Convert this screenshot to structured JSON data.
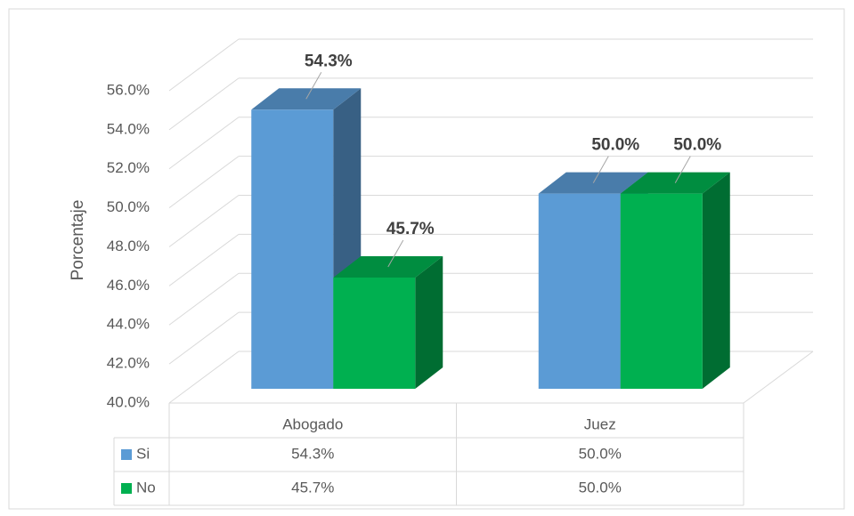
{
  "chart_data": {
    "type": "bar3d",
    "y_axis_label": "Porcentaje",
    "categories": [
      "Abogado",
      "Juez"
    ],
    "series": [
      {
        "name": "Si",
        "color": "#5b9bd5",
        "values": [
          54.3,
          50.0
        ],
        "value_labels": [
          "54.3%",
          "50.0%"
        ]
      },
      {
        "name": "No",
        "color": "#00b050",
        "values": [
          45.7,
          50.0
        ],
        "value_labels": [
          "45.7%",
          "50.0%"
        ]
      }
    ],
    "ylim": [
      40,
      56
    ],
    "yticks": [
      {
        "value": 40,
        "label": "40.0%"
      },
      {
        "value": 42,
        "label": "42.0%"
      },
      {
        "value": 44,
        "label": "44.0%"
      },
      {
        "value": 46,
        "label": "46.0%"
      },
      {
        "value": 48,
        "label": "48.0%"
      },
      {
        "value": 50,
        "label": "50.0%"
      },
      {
        "value": 52,
        "label": "52.0%"
      },
      {
        "value": 54,
        "label": "54.0%"
      },
      {
        "value": 56,
        "label": "56.0%"
      }
    ],
    "grid": true,
    "data_table": true
  }
}
